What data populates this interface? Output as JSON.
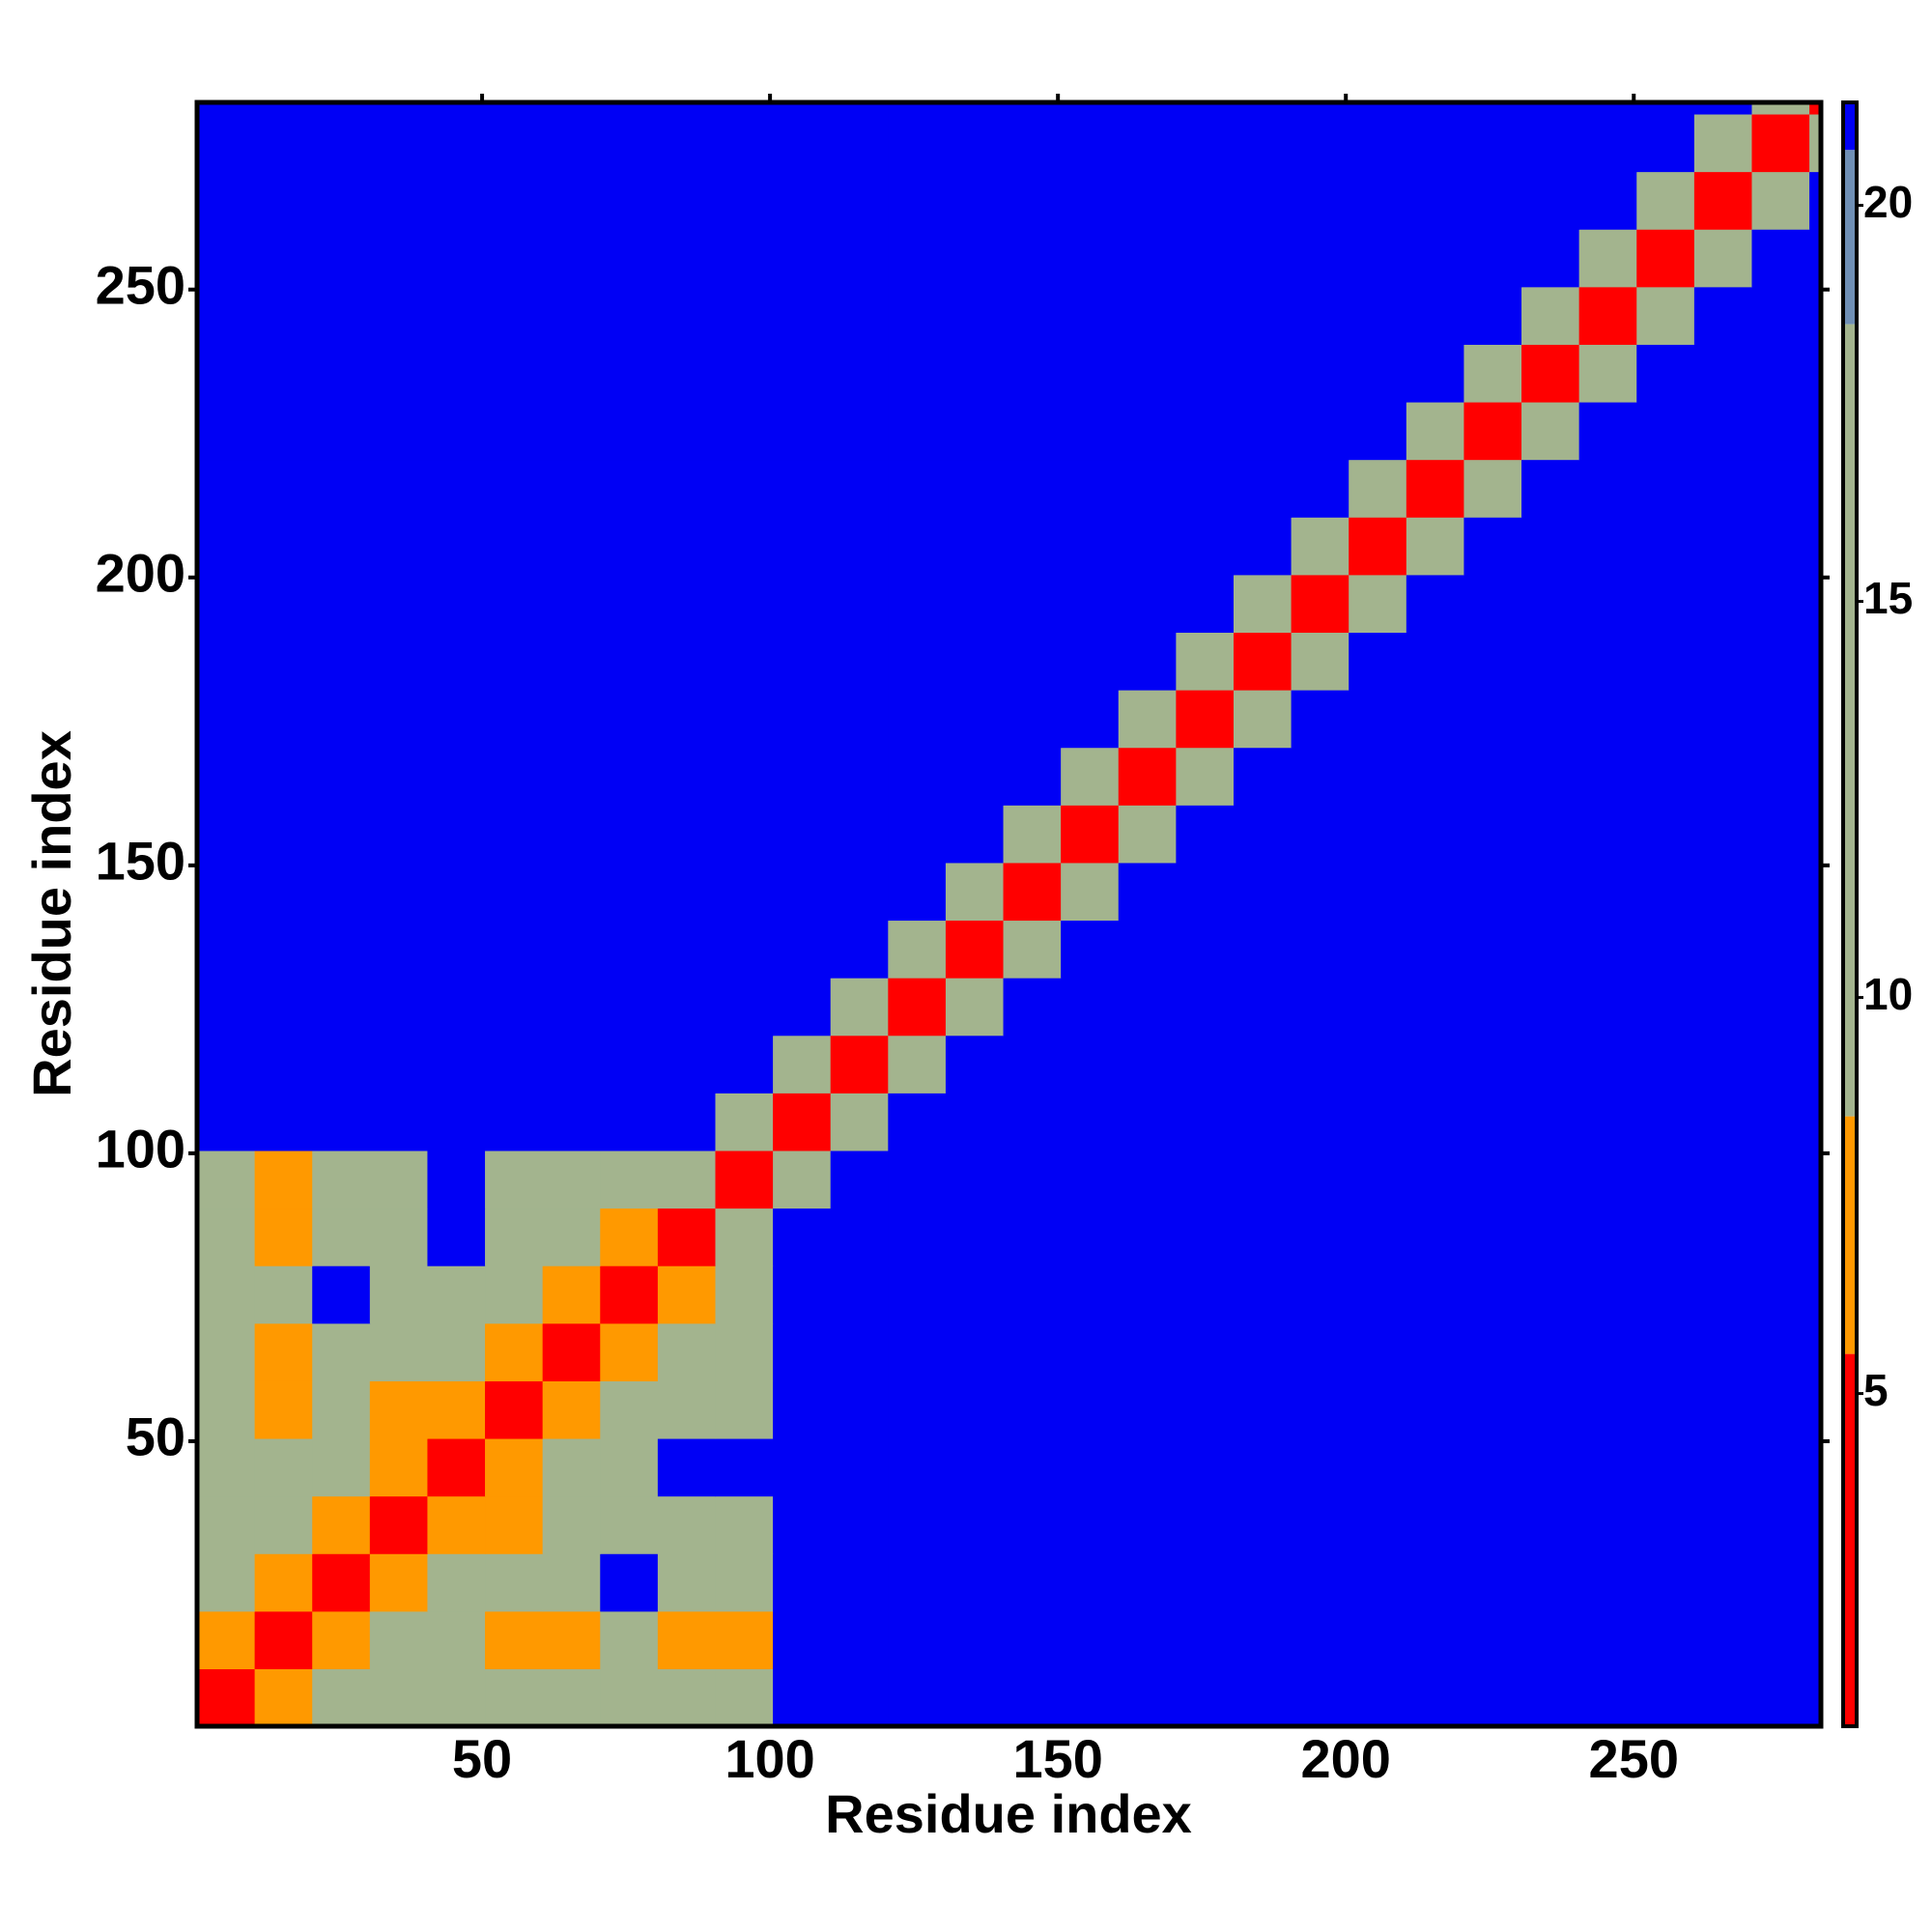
{
  "chart_data": {
    "type": "heatmap",
    "x_label": "Residue index",
    "y_label": "Residue index",
    "xlim": [
      0.5,
      282.5
    ],
    "ylim": [
      0.5,
      282.5
    ],
    "xticks": [
      50,
      100,
      150,
      200,
      250
    ],
    "yticks": [
      50,
      100,
      150,
      200,
      250
    ],
    "x_edges": [
      0.5,
      10.5,
      20.5,
      30.5,
      40.5,
      50.5,
      60.5,
      70.5,
      80.5,
      90.5,
      100.5,
      110.5,
      120.5,
      130.5,
      140.5,
      150.5,
      160.5,
      170.5,
      180.5,
      190.5,
      200.5,
      210.5,
      220.5,
      230.5,
      240.5,
      250.5,
      260.5,
      270.5,
      280.5,
      282.5
    ],
    "y_edges": [
      0.5,
      10.5,
      20.5,
      30.5,
      40.5,
      50.5,
      60.5,
      70.5,
      80.5,
      90.5,
      100.5,
      110.5,
      120.5,
      130.5,
      140.5,
      150.5,
      160.5,
      170.5,
      180.5,
      190.5,
      200.5,
      210.5,
      220.5,
      230.5,
      240.5,
      250.5,
      260.5,
      270.5,
      280.5,
      282.5
    ],
    "clim": [
      0.8,
      21.3
    ],
    "cticks": [
      5,
      10,
      15,
      20
    ],
    "colorscale": [
      {
        "max": 5.5,
        "color": "#ff0000"
      },
      {
        "max": 8.5,
        "color": "#ff9900"
      },
      {
        "max": 18.5,
        "color": "#a3b48e"
      },
      {
        "max": 20.7,
        "color": "#6f8fb5"
      },
      {
        "max": 21.3,
        "color": "#0000f5"
      }
    ],
    "z": [
      [
        3,
        7,
        12,
        12,
        12,
        12,
        12,
        12,
        12,
        12,
        21,
        21,
        21,
        21,
        21,
        21,
        21,
        21,
        21,
        21,
        21,
        21,
        21,
        21,
        21,
        21,
        21,
        21,
        21
      ],
      [
        7,
        3,
        7,
        12,
        12,
        7,
        7,
        12,
        7,
        7,
        21,
        21,
        21,
        21,
        21,
        21,
        21,
        21,
        21,
        21,
        21,
        21,
        21,
        21,
        21,
        21,
        21,
        21,
        21
      ],
      [
        12,
        7,
        3,
        7,
        12,
        12,
        12,
        21,
        12,
        12,
        21,
        21,
        21,
        21,
        21,
        21,
        21,
        21,
        21,
        21,
        21,
        21,
        21,
        21,
        21,
        21,
        21,
        21,
        21
      ],
      [
        12,
        12,
        7,
        3,
        7,
        7,
        12,
        12,
        12,
        12,
        21,
        21,
        21,
        21,
        21,
        21,
        21,
        21,
        21,
        21,
        21,
        21,
        21,
        21,
        21,
        21,
        21,
        21,
        21
      ],
      [
        12,
        12,
        12,
        7,
        3,
        7,
        12,
        12,
        21,
        21,
        21,
        21,
        21,
        21,
        21,
        21,
        21,
        21,
        21,
        21,
        21,
        21,
        21,
        21,
        21,
        21,
        21,
        21,
        21
      ],
      [
        12,
        7,
        12,
        7,
        7,
        3,
        7,
        12,
        12,
        12,
        21,
        21,
        21,
        21,
        21,
        21,
        21,
        21,
        21,
        21,
        21,
        21,
        21,
        21,
        21,
        21,
        21,
        21,
        21
      ],
      [
        12,
        7,
        12,
        12,
        12,
        7,
        3,
        7,
        12,
        12,
        21,
        21,
        21,
        21,
        21,
        21,
        21,
        21,
        21,
        21,
        21,
        21,
        21,
        21,
        21,
        21,
        21,
        21,
        21
      ],
      [
        12,
        12,
        21,
        12,
        12,
        12,
        7,
        3,
        7,
        12,
        21,
        21,
        21,
        21,
        21,
        21,
        21,
        21,
        21,
        21,
        21,
        21,
        21,
        21,
        21,
        21,
        21,
        21,
        21
      ],
      [
        12,
        7,
        12,
        12,
        21,
        12,
        12,
        7,
        3,
        12,
        21,
        21,
        21,
        21,
        21,
        21,
        21,
        21,
        21,
        21,
        21,
        21,
        21,
        21,
        21,
        21,
        21,
        21,
        21
      ],
      [
        12,
        7,
        12,
        12,
        21,
        12,
        12,
        12,
        12,
        3,
        12,
        21,
        21,
        21,
        21,
        21,
        21,
        21,
        21,
        21,
        21,
        21,
        21,
        21,
        21,
        21,
        21,
        21,
        21
      ],
      [
        21,
        21,
        21,
        21,
        21,
        21,
        21,
        21,
        21,
        12,
        3,
        14,
        21,
        21,
        21,
        21,
        21,
        21,
        21,
        21,
        21,
        21,
        21,
        21,
        21,
        21,
        21,
        21,
        21
      ],
      [
        21,
        21,
        21,
        21,
        21,
        21,
        21,
        21,
        21,
        21,
        14,
        3,
        14,
        21,
        21,
        21,
        21,
        21,
        21,
        21,
        21,
        21,
        21,
        21,
        21,
        21,
        21,
        21,
        21
      ],
      [
        21,
        21,
        21,
        21,
        21,
        21,
        21,
        21,
        21,
        21,
        21,
        14,
        3,
        14,
        21,
        21,
        21,
        21,
        21,
        21,
        21,
        21,
        21,
        21,
        21,
        21,
        21,
        21,
        21
      ],
      [
        21,
        21,
        21,
        21,
        21,
        21,
        21,
        21,
        21,
        21,
        21,
        21,
        14,
        3,
        14,
        21,
        21,
        21,
        21,
        21,
        21,
        21,
        21,
        21,
        21,
        21,
        21,
        21,
        21
      ],
      [
        21,
        21,
        21,
        21,
        21,
        21,
        21,
        21,
        21,
        21,
        21,
        21,
        21,
        14,
        3,
        14,
        21,
        21,
        21,
        21,
        21,
        21,
        21,
        21,
        21,
        21,
        21,
        21,
        21
      ],
      [
        21,
        21,
        21,
        21,
        21,
        21,
        21,
        21,
        21,
        21,
        21,
        21,
        21,
        21,
        14,
        3,
        14,
        21,
        21,
        21,
        21,
        21,
        21,
        21,
        21,
        21,
        21,
        21,
        21
      ],
      [
        21,
        21,
        21,
        21,
        21,
        21,
        21,
        21,
        21,
        21,
        21,
        21,
        21,
        21,
        21,
        14,
        3,
        14,
        21,
        21,
        21,
        21,
        21,
        21,
        21,
        21,
        21,
        21,
        21
      ],
      [
        21,
        21,
        21,
        21,
        21,
        21,
        21,
        21,
        21,
        21,
        21,
        21,
        21,
        21,
        21,
        21,
        14,
        3,
        14,
        21,
        21,
        21,
        21,
        21,
        21,
        21,
        21,
        21,
        21
      ],
      [
        21,
        21,
        21,
        21,
        21,
        21,
        21,
        21,
        21,
        21,
        21,
        21,
        21,
        21,
        21,
        21,
        21,
        14,
        3,
        14,
        21,
        21,
        21,
        21,
        21,
        21,
        21,
        21,
        21
      ],
      [
        21,
        21,
        21,
        21,
        21,
        21,
        21,
        21,
        21,
        21,
        21,
        21,
        21,
        21,
        21,
        21,
        21,
        21,
        14,
        3,
        14,
        21,
        21,
        21,
        21,
        21,
        21,
        21,
        21
      ],
      [
        21,
        21,
        21,
        21,
        21,
        21,
        21,
        21,
        21,
        21,
        21,
        21,
        21,
        21,
        21,
        21,
        21,
        21,
        21,
        14,
        3,
        14,
        21,
        21,
        21,
        21,
        21,
        21,
        21
      ],
      [
        21,
        21,
        21,
        21,
        21,
        21,
        21,
        21,
        21,
        21,
        21,
        21,
        21,
        21,
        21,
        21,
        21,
        21,
        21,
        21,
        14,
        3,
        14,
        21,
        21,
        21,
        21,
        21,
        21
      ],
      [
        21,
        21,
        21,
        21,
        21,
        21,
        21,
        21,
        21,
        21,
        21,
        21,
        21,
        21,
        21,
        21,
        21,
        21,
        21,
        21,
        21,
        14,
        3,
        14,
        21,
        21,
        21,
        21,
        21
      ],
      [
        21,
        21,
        21,
        21,
        21,
        21,
        21,
        21,
        21,
        21,
        21,
        21,
        21,
        21,
        21,
        21,
        21,
        21,
        21,
        21,
        21,
        21,
        14,
        3,
        14,
        21,
        21,
        21,
        21
      ],
      [
        21,
        21,
        21,
        21,
        21,
        21,
        21,
        21,
        21,
        21,
        21,
        21,
        21,
        21,
        21,
        21,
        21,
        21,
        21,
        21,
        21,
        21,
        21,
        14,
        3,
        14,
        21,
        21,
        21
      ],
      [
        21,
        21,
        21,
        21,
        21,
        21,
        21,
        21,
        21,
        21,
        21,
        21,
        21,
        21,
        21,
        21,
        21,
        21,
        21,
        21,
        21,
        21,
        21,
        21,
        14,
        3,
        14,
        21,
        21
      ],
      [
        21,
        21,
        21,
        21,
        21,
        21,
        21,
        21,
        21,
        21,
        21,
        21,
        21,
        21,
        21,
        21,
        21,
        21,
        21,
        21,
        21,
        21,
        21,
        21,
        21,
        14,
        3,
        14,
        21
      ],
      [
        21,
        21,
        21,
        21,
        21,
        21,
        21,
        21,
        21,
        21,
        21,
        21,
        21,
        21,
        21,
        21,
        21,
        21,
        21,
        21,
        21,
        21,
        21,
        21,
        21,
        21,
        14,
        3,
        14
      ],
      [
        21,
        21,
        21,
        21,
        21,
        21,
        21,
        21,
        21,
        21,
        21,
        21,
        21,
        21,
        21,
        21,
        21,
        21,
        21,
        21,
        21,
        21,
        21,
        21,
        21,
        21,
        21,
        14,
        3
      ]
    ]
  }
}
